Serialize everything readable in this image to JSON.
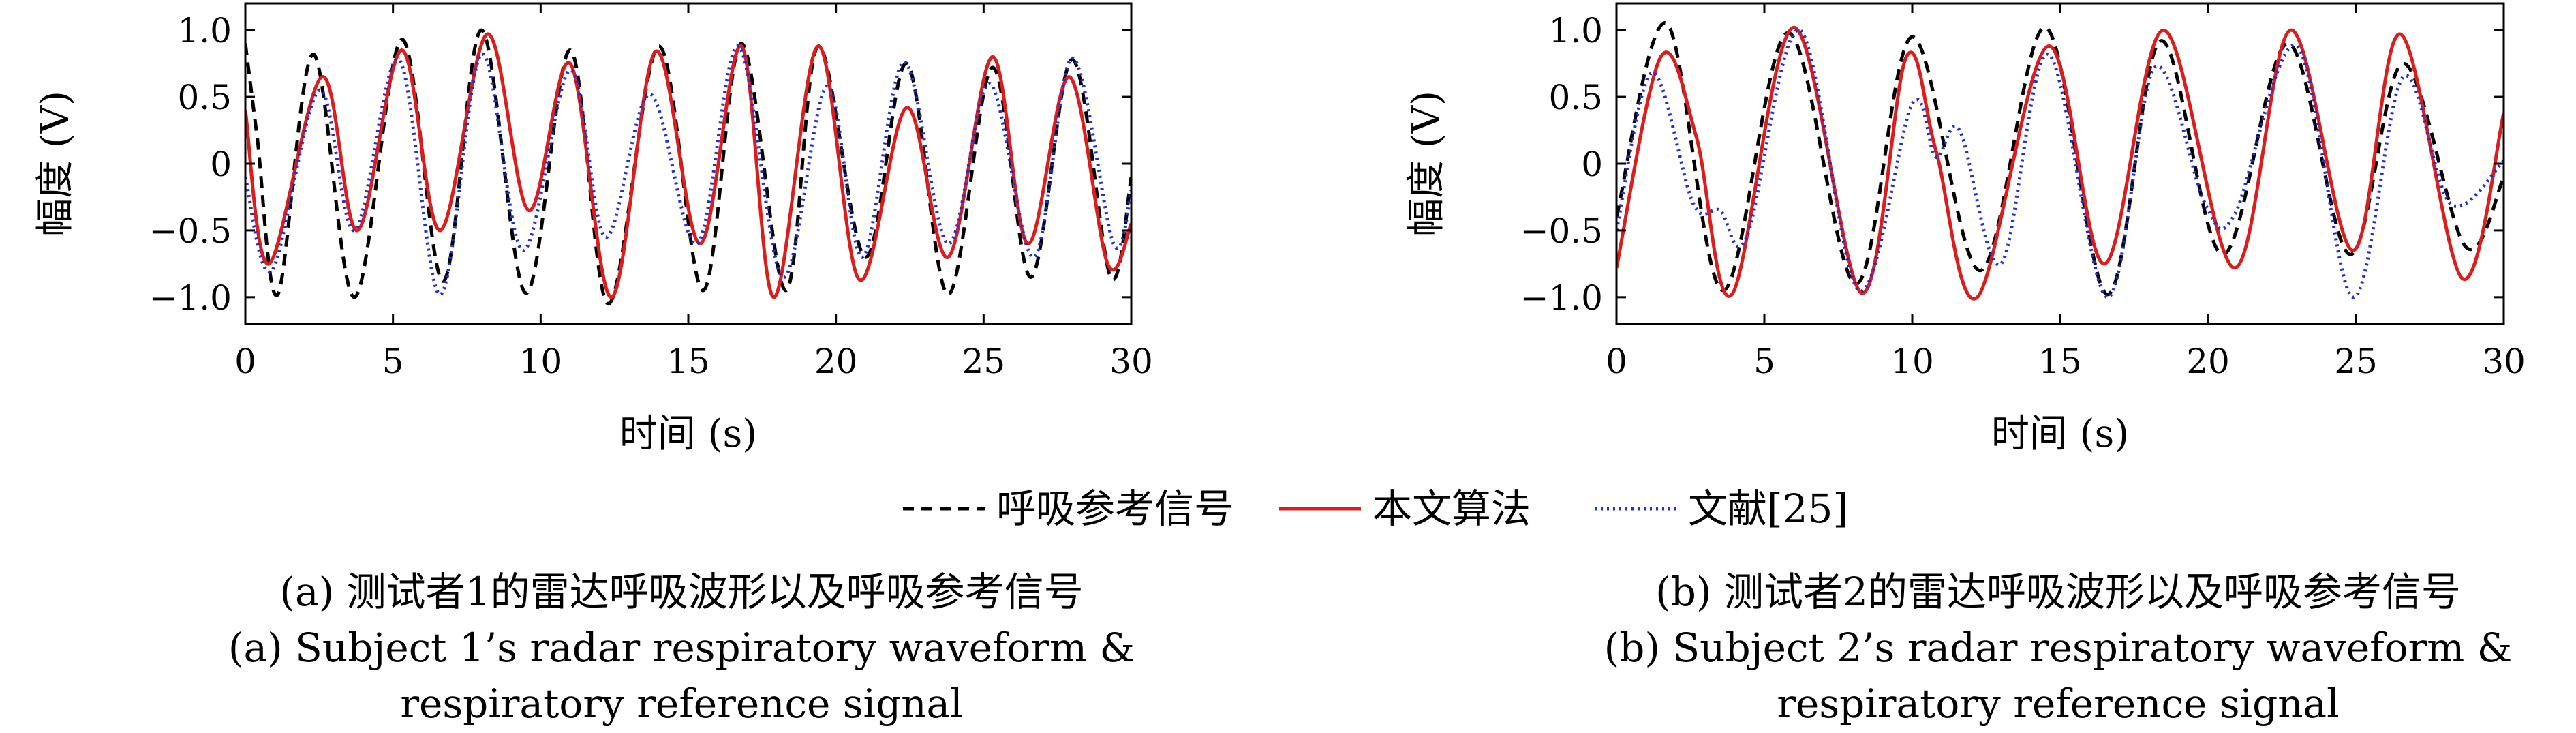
{
  "legend": {
    "ref_label": "呼吸参考信号",
    "alg_label": "本文算法",
    "lit_label": "文献[25]"
  },
  "colors": {
    "ref": "#000000",
    "alg": "#dd1c1c",
    "lit": "#1f2fd6"
  },
  "captions": {
    "left": [
      "(a) 测试者1的雷达呼吸波形以及呼吸参考信号",
      "(a) Subject 1’s radar respiratory waveform &",
      "respiratory reference signal"
    ],
    "right": [
      "(b) 测试者2的雷达呼吸波形以及呼吸参考信号",
      "(b) Subject 2’s radar respiratory waveform &",
      "respiratory reference signal"
    ]
  },
  "chart_data": [
    {
      "type": "line",
      "xlabel": "时间 (s)",
      "ylabel": "幅度 (V)",
      "xlim": [
        0,
        30
      ],
      "ylim": [
        -1.2,
        1.2
      ],
      "xticks": [
        0,
        5,
        10,
        15,
        20,
        25,
        30
      ],
      "xtick_labels": [
        "0",
        "5",
        "10",
        "15",
        "20",
        "25",
        "30"
      ],
      "yticks": [
        -1.0,
        -0.5,
        0,
        0.5,
        1.0
      ],
      "ytick_labels": [
        "−1.0",
        "−0.5",
        "0",
        "0.5",
        "1.0"
      ],
      "series": [
        {
          "name": "呼吸参考信号",
          "style": "dashed",
          "points": [
            [
              0,
              0.9
            ],
            [
              0.4,
              0.2
            ],
            [
              1.1,
              -0.98
            ],
            [
              2.3,
              0.82
            ],
            [
              3.7,
              -1.0
            ],
            [
              5.3,
              0.93
            ],
            [
              6.7,
              -0.88
            ],
            [
              8.0,
              1.0
            ],
            [
              9.5,
              -0.97
            ],
            [
              11.0,
              0.85
            ],
            [
              12.3,
              -1.05
            ],
            [
              14.0,
              0.88
            ],
            [
              15.5,
              -0.95
            ],
            [
              16.8,
              0.9
            ],
            [
              18.3,
              -0.95
            ],
            [
              19.4,
              0.88
            ],
            [
              21.0,
              -0.7
            ],
            [
              22.4,
              0.75
            ],
            [
              23.8,
              -0.98
            ],
            [
              25.3,
              0.72
            ],
            [
              26.6,
              -0.85
            ],
            [
              28.0,
              0.78
            ],
            [
              29.3,
              -0.85
            ],
            [
              30,
              -0.1
            ]
          ]
        },
        {
          "name": "本文算法",
          "style": "solid",
          "points": [
            [
              0,
              0.4
            ],
            [
              0.8,
              -0.75
            ],
            [
              2.6,
              0.65
            ],
            [
              3.8,
              -0.5
            ],
            [
              5.3,
              0.85
            ],
            [
              6.6,
              -0.5
            ],
            [
              8.2,
              0.97
            ],
            [
              9.6,
              -0.35
            ],
            [
              11.0,
              0.75
            ],
            [
              12.4,
              -1.0
            ],
            [
              13.9,
              0.84
            ],
            [
              15.4,
              -0.6
            ],
            [
              16.8,
              0.88
            ],
            [
              17.9,
              -1.0
            ],
            [
              19.4,
              0.88
            ],
            [
              20.8,
              -0.87
            ],
            [
              22.4,
              0.42
            ],
            [
              23.8,
              -0.7
            ],
            [
              25.3,
              0.8
            ],
            [
              26.5,
              -0.6
            ],
            [
              27.9,
              0.65
            ],
            [
              29.2,
              -0.75
            ],
            [
              30,
              -0.45
            ]
          ]
        },
        {
          "name": "文献[25]",
          "style": "dotted",
          "points": [
            [
              0,
              -0.1
            ],
            [
              0.9,
              -0.8
            ],
            [
              2.5,
              0.55
            ],
            [
              3.7,
              -0.5
            ],
            [
              5.2,
              0.78
            ],
            [
              6.6,
              -0.98
            ],
            [
              8.0,
              0.82
            ],
            [
              9.4,
              -0.65
            ],
            [
              11.0,
              0.7
            ],
            [
              12.2,
              -0.55
            ],
            [
              13.7,
              0.52
            ],
            [
              15.3,
              -0.6
            ],
            [
              16.7,
              0.88
            ],
            [
              18.2,
              -0.85
            ],
            [
              19.7,
              0.58
            ],
            [
              20.9,
              -0.7
            ],
            [
              22.3,
              0.76
            ],
            [
              23.8,
              -0.6
            ],
            [
              25.2,
              0.6
            ],
            [
              26.7,
              -0.7
            ],
            [
              28.0,
              0.79
            ],
            [
              29.4,
              -0.6
            ],
            [
              30,
              -0.2
            ]
          ]
        }
      ]
    },
    {
      "type": "line",
      "xlabel": "时间 (s)",
      "ylabel": "幅度 (V)",
      "xlim": [
        0,
        30
      ],
      "ylim": [
        -1.2,
        1.2
      ],
      "xticks": [
        0,
        5,
        10,
        15,
        20,
        25,
        30
      ],
      "xtick_labels": [
        "0",
        "5",
        "10",
        "15",
        "20",
        "25",
        "30"
      ],
      "yticks": [
        -1.0,
        -0.5,
        0,
        0.5,
        1.0
      ],
      "ytick_labels": [
        "−1.0",
        "−0.5",
        "0",
        "0.5",
        "1.0"
      ],
      "series": [
        {
          "name": "呼吸参考信号",
          "style": "dashed",
          "points": [
            [
              0,
              -0.4
            ],
            [
              1.7,
              1.05
            ],
            [
              3.6,
              -0.95
            ],
            [
              5.8,
              0.98
            ],
            [
              8.1,
              -0.9
            ],
            [
              10.0,
              0.95
            ],
            [
              12.3,
              -0.8
            ],
            [
              14.5,
              1.02
            ],
            [
              16.6,
              -0.98
            ],
            [
              18.4,
              0.92
            ],
            [
              20.5,
              -0.68
            ],
            [
              22.7,
              0.9
            ],
            [
              24.8,
              -0.68
            ],
            [
              26.6,
              0.75
            ],
            [
              28.7,
              -0.62
            ],
            [
              30,
              -0.1
            ]
          ]
        },
        {
          "name": "本文算法",
          "style": "solid",
          "points": [
            [
              0,
              -0.78
            ],
            [
              1.5,
              0.8
            ],
            [
              2.7,
              0.2
            ],
            [
              3.9,
              -0.98
            ],
            [
              6.0,
              1.02
            ],
            [
              8.3,
              -0.97
            ],
            [
              9.8,
              0.8
            ],
            [
              10.8,
              0.1
            ],
            [
              12.2,
              -1.0
            ],
            [
              14.6,
              0.88
            ],
            [
              16.5,
              -0.75
            ],
            [
              18.5,
              1.0
            ],
            [
              20.9,
              -0.78
            ],
            [
              22.8,
              1.0
            ],
            [
              24.9,
              -0.65
            ],
            [
              26.5,
              0.97
            ],
            [
              28.6,
              -0.86
            ],
            [
              30,
              0.38
            ]
          ]
        },
        {
          "name": "文献[25]",
          "style": "dotted",
          "points": [
            [
              0,
              -0.5
            ],
            [
              1.2,
              0.68
            ],
            [
              2.6,
              -0.3
            ],
            [
              3.5,
              -0.35
            ],
            [
              4.4,
              -0.55
            ],
            [
              6.2,
              1.0
            ],
            [
              8.2,
              -0.95
            ],
            [
              10.0,
              0.45
            ],
            [
              10.8,
              0.05
            ],
            [
              11.6,
              0.25
            ],
            [
              13.0,
              -0.75
            ],
            [
              14.6,
              0.82
            ],
            [
              16.6,
              -1.0
            ],
            [
              18.2,
              0.72
            ],
            [
              19.9,
              -0.3
            ],
            [
              20.9,
              -0.38
            ],
            [
              23.0,
              0.88
            ],
            [
              24.9,
              -1.0
            ],
            [
              26.6,
              0.65
            ],
            [
              28.2,
              -0.3
            ],
            [
              30,
              0.02
            ]
          ]
        }
      ]
    }
  ]
}
